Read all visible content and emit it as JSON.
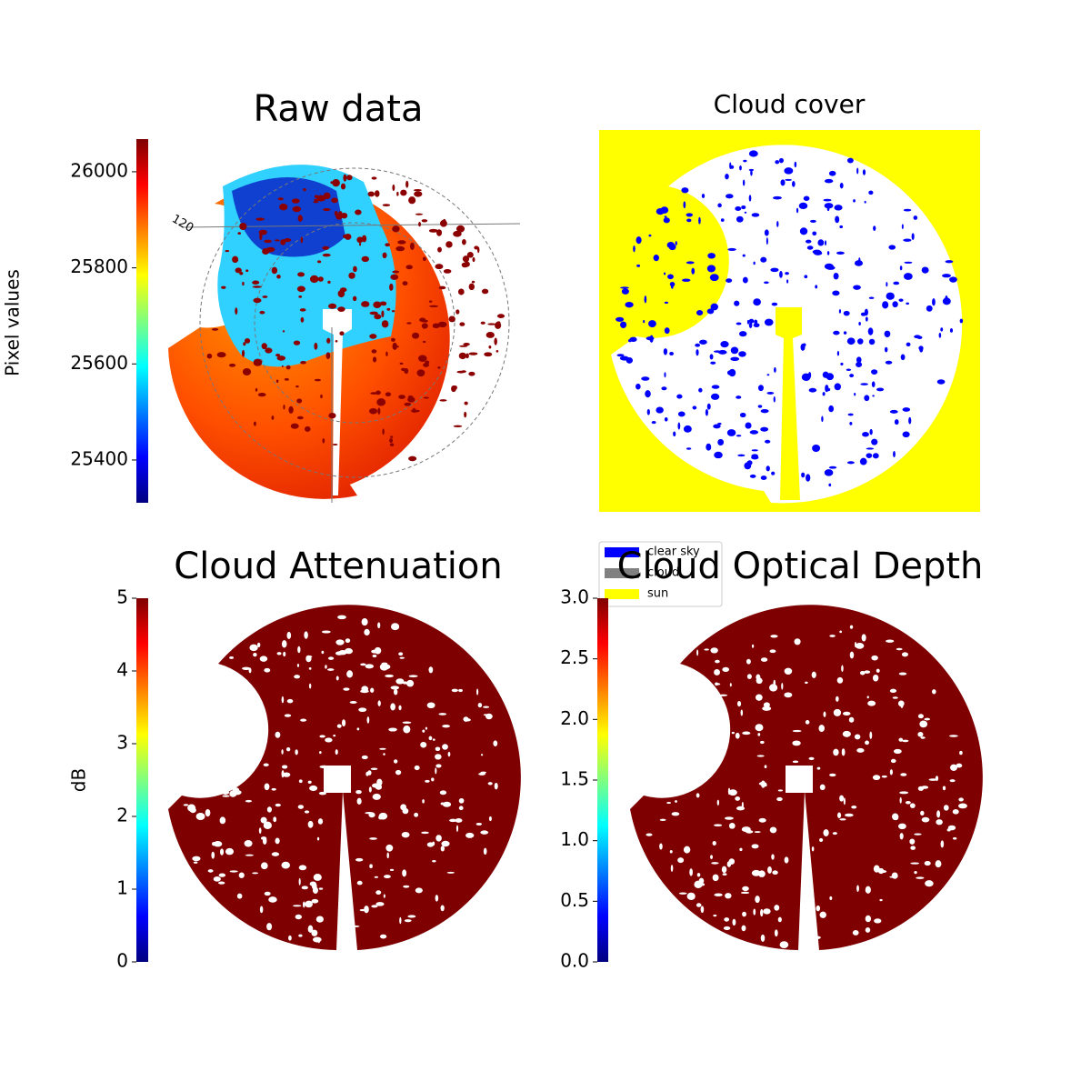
{
  "chart_data": [
    {
      "type": "image",
      "title": "Raw data",
      "colormap": "jet",
      "ylabel": "Pixel values",
      "ylim": [
        25311,
        26068
      ],
      "yticks": [
        25400,
        25600,
        25800,
        26000
      ],
      "annotations": [
        "120"
      ]
    },
    {
      "type": "image",
      "title": "Cloud cover",
      "series": [
        {
          "name": "clear sky",
          "color": "#0000ff"
        },
        {
          "name": "cloud",
          "color": "#808080"
        },
        {
          "name": "sun",
          "color": "#ffff00"
        }
      ]
    },
    {
      "type": "image",
      "title": "Cloud Attenuation",
      "colormap": "jet",
      "ylabel": "dB",
      "ylim": [
        0,
        5
      ],
      "yticks": [
        0,
        1,
        2,
        3,
        4,
        5
      ]
    },
    {
      "type": "image",
      "title": "Cloud Optical Depth",
      "colormap": "jet",
      "ylim": [
        0,
        3
      ],
      "yticks": [
        {
          "value": 0,
          "label": "0.0"
        },
        {
          "value": 0.5,
          "label": "0.5"
        },
        {
          "value": 1,
          "label": "1.0"
        },
        {
          "value": 1.5,
          "label": "1.5"
        },
        {
          "value": 2,
          "label": "2.0"
        },
        {
          "value": 2.5,
          "label": "2.5"
        },
        {
          "value": 3,
          "label": "3.0"
        }
      ]
    }
  ]
}
